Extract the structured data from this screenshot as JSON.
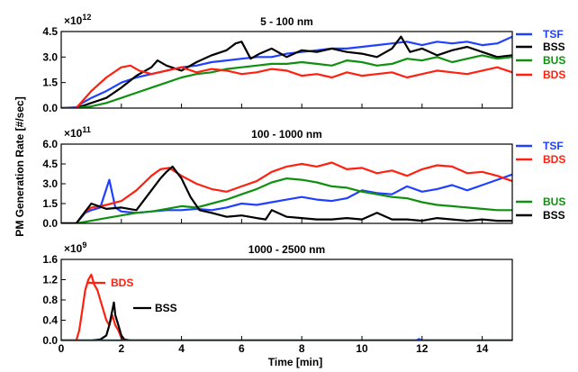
{
  "chart_data": {
    "type": "line",
    "ylabel": "PM Generation Rate [#/sec]",
    "xlabel": "Time [min]",
    "xlim": [
      0,
      15
    ],
    "xticks": [
      0,
      2,
      4,
      6,
      8,
      10,
      12,
      14
    ],
    "xtick_labels": [
      "0",
      "2",
      "4",
      "6",
      "8",
      "10",
      "12",
      "14"
    ],
    "colors": {
      "TSF": "#2040ff",
      "BSS": "#000000",
      "BUS": "#109010",
      "BDS": "#ff2010"
    },
    "panels": [
      {
        "title": "5 - 100 nm",
        "exponent_base": "×10",
        "exponent_power": "12",
        "ylim": [
          0,
          4.5
        ],
        "yticks": [
          0.0,
          1.5,
          3.0,
          4.5
        ],
        "ytick_labels": [
          "0.0",
          "1.5",
          "3.0",
          "4.5"
        ],
        "legend": [
          "TSF",
          "BSS",
          "BUS",
          "BDS"
        ],
        "series": [
          {
            "name": "TSF",
            "x": [
              0,
              0.5,
              0.7,
              1,
              1.5,
              2,
              2.5,
              3,
              3.5,
              4,
              4.5,
              5,
              5.5,
              6,
              6.5,
              7,
              7.5,
              8,
              8.5,
              9,
              9.5,
              10,
              10.5,
              11,
              11.5,
              12,
              12.5,
              13,
              13.5,
              14,
              14.5,
              15
            ],
            "y": [
              0,
              0.05,
              0.3,
              0.6,
              1.0,
              1.5,
              1.8,
              2.0,
              2.2,
              2.4,
              2.5,
              2.7,
              2.8,
              2.9,
              3.0,
              3.0,
              3.2,
              3.3,
              3.4,
              3.5,
              3.5,
              3.6,
              3.7,
              3.8,
              3.9,
              3.7,
              3.9,
              3.8,
              3.9,
              3.7,
              3.8,
              4.2
            ]
          },
          {
            "name": "BSS",
            "x": [
              0,
              0.5,
              1,
              1.5,
              2,
              2.5,
              3,
              3.2,
              3.5,
              4,
              4.5,
              5,
              5.5,
              5.8,
              6,
              6.3,
              6.6,
              7,
              7.5,
              8,
              8.5,
              9,
              9.5,
              10,
              10.5,
              11,
              11.3,
              11.6,
              12,
              12.5,
              13,
              13.5,
              14,
              14.5,
              15
            ],
            "y": [
              0,
              0.0,
              0.3,
              0.6,
              1.2,
              1.9,
              2.4,
              2.8,
              2.5,
              2.2,
              2.7,
              3.1,
              3.4,
              3.8,
              3.9,
              2.9,
              3.2,
              3.5,
              3.0,
              3.4,
              3.3,
              3.5,
              3.3,
              3.2,
              3.0,
              3.5,
              4.2,
              3.3,
              3.5,
              3.1,
              3.4,
              3.6,
              3.3,
              3.0,
              3.1
            ]
          },
          {
            "name": "BUS",
            "x": [
              0,
              0.5,
              1,
              1.5,
              2,
              2.5,
              3,
              3.5,
              4,
              4.5,
              5,
              5.5,
              6,
              6.5,
              7,
              7.5,
              8,
              8.5,
              9,
              9.5,
              10,
              10.5,
              11,
              11.5,
              12,
              12.5,
              13,
              13.5,
              14,
              14.5,
              15
            ],
            "y": [
              0,
              0.0,
              0.1,
              0.3,
              0.6,
              0.9,
              1.2,
              1.5,
              1.8,
              2.0,
              2.1,
              2.3,
              2.4,
              2.5,
              2.6,
              2.6,
              2.7,
              2.6,
              2.5,
              2.8,
              2.7,
              2.5,
              2.6,
              2.9,
              2.8,
              3.0,
              2.7,
              2.9,
              3.1,
              2.9,
              3.0
            ]
          },
          {
            "name": "BDS",
            "x": [
              0,
              0.5,
              0.7,
              1,
              1.5,
              2,
              2.3,
              2.6,
              3,
              3.5,
              4,
              4.5,
              5,
              5.5,
              6,
              6.5,
              7,
              7.5,
              8,
              8.5,
              9,
              9.5,
              10,
              10.5,
              11,
              11.5,
              12,
              12.5,
              13,
              13.5,
              14,
              14.5,
              15
            ],
            "y": [
              0,
              0.0,
              0.4,
              1.0,
              1.8,
              2.4,
              2.5,
              2.2,
              2.0,
              2.2,
              2.4,
              2.1,
              2.3,
              2.2,
              2.0,
              2.1,
              2.3,
              2.2,
              1.9,
              2.0,
              1.8,
              2.1,
              1.9,
              2.0,
              2.1,
              1.8,
              2.0,
              2.2,
              2.1,
              2.0,
              2.2,
              2.4,
              2.1
            ]
          }
        ]
      },
      {
        "title": "100 - 1000 nm",
        "exponent_base": "×10",
        "exponent_power": "11",
        "ylim": [
          0,
          6.0
        ],
        "yticks": [
          0.0,
          1.5,
          3.0,
          4.5,
          6.0
        ],
        "ytick_labels": [
          "0.0",
          "1.5",
          "3.0",
          "4.5",
          "6.0"
        ],
        "legend": [
          "TSF",
          "BDS",
          "BUS",
          "BSS"
        ],
        "series": [
          {
            "name": "TSF",
            "x": [
              0,
              0.5,
              0.8,
              1,
              1.3,
              1.6,
              1.8,
              2,
              2.5,
              3,
              3.5,
              4,
              4.5,
              5,
              5.5,
              6,
              6.5,
              7,
              7.5,
              8,
              8.5,
              9,
              9.5,
              10,
              10.5,
              11,
              11.5,
              12,
              12.5,
              13,
              13.5,
              14,
              14.5,
              15
            ],
            "y": [
              0,
              0.0,
              0.8,
              1.0,
              1.2,
              3.3,
              1.2,
              0.9,
              0.8,
              0.9,
              1.0,
              1.0,
              1.1,
              1.0,
              1.2,
              1.5,
              1.4,
              1.6,
              1.8,
              2.0,
              1.8,
              1.7,
              1.9,
              2.5,
              2.3,
              2.2,
              2.8,
              2.4,
              2.6,
              2.9,
              2.5,
              2.9,
              3.3,
              3.7
            ]
          },
          {
            "name": "BDS",
            "x": [
              0,
              0.5,
              0.8,
              1,
              1.5,
              2,
              2.5,
              3,
              3.3,
              3.6,
              4,
              4.5,
              5,
              5.5,
              6,
              6.5,
              7,
              7.5,
              8,
              8.5,
              9,
              9.5,
              10,
              10.5,
              11,
              11.5,
              12,
              12.5,
              13,
              13.5,
              14,
              14.5,
              15
            ],
            "y": [
              0,
              0.0,
              0.9,
              1.2,
              1.4,
              1.7,
              2.5,
              3.6,
              4.1,
              4.2,
              3.6,
              3.0,
              2.6,
              2.4,
              2.8,
              3.2,
              3.9,
              4.3,
              4.5,
              4.3,
              4.6,
              4.1,
              4.2,
              3.8,
              4.0,
              3.6,
              4.1,
              4.4,
              4.3,
              3.8,
              3.9,
              3.6,
              3.2
            ]
          },
          {
            "name": "BUS",
            "x": [
              0,
              0.5,
              1,
              1.5,
              2,
              2.5,
              3,
              3.5,
              4,
              4.5,
              5,
              5.5,
              6,
              6.5,
              7,
              7.5,
              8,
              8.5,
              9,
              9.5,
              10,
              10.5,
              11,
              11.5,
              12,
              12.5,
              13,
              13.5,
              14,
              14.5,
              15
            ],
            "y": [
              0,
              0.0,
              0.2,
              0.4,
              0.6,
              0.8,
              0.9,
              1.1,
              1.3,
              1.2,
              1.5,
              1.8,
              2.2,
              2.6,
              3.1,
              3.4,
              3.3,
              3.1,
              2.8,
              2.7,
              2.4,
              2.2,
              2.0,
              1.9,
              1.6,
              1.4,
              1.3,
              1.2,
              1.1,
              1.0,
              1.0
            ]
          },
          {
            "name": "BSS",
            "x": [
              0,
              0.5,
              1,
              1.5,
              2,
              2.5,
              3,
              3.3,
              3.5,
              3.7,
              4,
              4.3,
              4.6,
              5,
              5.5,
              6,
              6.5,
              6.8,
              7,
              7.5,
              8,
              8.5,
              9,
              9.5,
              10,
              10.5,
              11,
              11.5,
              12,
              12.5,
              13,
              13.5,
              14,
              14.5,
              15
            ],
            "y": [
              0,
              0.0,
              1.5,
              1.1,
              1.2,
              1.0,
              2.5,
              3.4,
              3.9,
              4.3,
              3.4,
              2.0,
              1.0,
              0.8,
              0.5,
              0.6,
              0.4,
              0.3,
              1.0,
              0.5,
              0.4,
              0.3,
              0.3,
              0.4,
              0.3,
              0.8,
              0.3,
              0.3,
              0.2,
              0.4,
              0.3,
              0.2,
              0.3,
              0.2,
              0.2
            ]
          }
        ]
      },
      {
        "title": "1000 - 2500 nm",
        "exponent_base": "×10",
        "exponent_power": "9",
        "ylim": [
          0,
          1.6
        ],
        "yticks": [
          0.0,
          0.4,
          0.8,
          1.2,
          1.6
        ],
        "ytick_labels": [
          "0.0",
          "0.4",
          "0.8",
          "1.2",
          "1.6"
        ],
        "annotations": [
          {
            "text": "BDS",
            "series": "BDS"
          },
          {
            "text": "BSS",
            "series": "BSS"
          }
        ],
        "series": [
          {
            "name": "BDS",
            "x": [
              0,
              0.5,
              0.6,
              0.7,
              0.8,
              0.9,
              1.0,
              1.1,
              1.2,
              1.3,
              1.4,
              1.5,
              1.6,
              1.7,
              1.8,
              1.9,
              2.0,
              2.1,
              2.3,
              3,
              4,
              6,
              8,
              10,
              12,
              14,
              15
            ],
            "y": [
              0,
              0.0,
              0.2,
              0.6,
              1.0,
              1.2,
              1.3,
              1.1,
              1.0,
              0.8,
              0.6,
              0.4,
              0.3,
              0.5,
              0.3,
              0.2,
              0.05,
              0.02,
              0.0,
              0.0,
              0.0,
              0.0,
              0.0,
              0.0,
              0.0,
              0.0,
              0.0
            ]
          },
          {
            "name": "BSS",
            "x": [
              0,
              1.0,
              1.3,
              1.5,
              1.6,
              1.7,
              1.75,
              1.8,
              1.9,
              2.0,
              2.1,
              2.3,
              3,
              6,
              9,
              12,
              15
            ],
            "y": [
              0,
              0.0,
              0.02,
              0.1,
              0.3,
              0.6,
              0.75,
              0.5,
              0.3,
              0.1,
              0.02,
              0.0,
              0.0,
              0.0,
              0.0,
              0.0,
              0.0
            ]
          },
          {
            "name": "TSF",
            "x": [
              0,
              6,
              7,
              9,
              11.8,
              11.9,
              12.0,
              13,
              15
            ],
            "y": [
              0,
              0.0,
              0.0,
              0.0,
              0.0,
              0.03,
              0.0,
              0.0,
              0.0
            ]
          },
          {
            "name": "BUS",
            "x": [
              0,
              5,
              10,
              15
            ],
            "y": [
              0,
              0.0,
              0.0,
              0.0
            ]
          }
        ]
      }
    ]
  }
}
